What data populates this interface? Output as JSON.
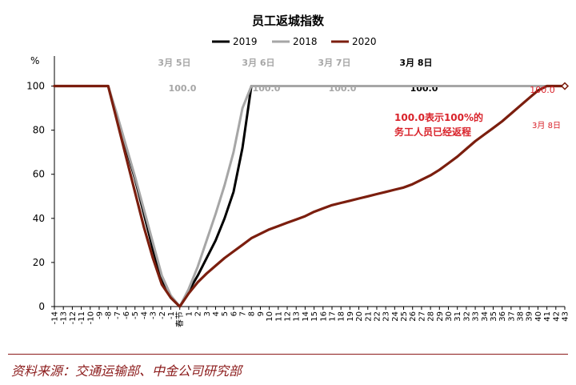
{
  "chart_data": {
    "type": "line",
    "title": "员工返城指数",
    "y_unit": "%",
    "ylim": [
      0,
      110
    ],
    "yticks": [
      0,
      20,
      40,
      60,
      80,
      100
    ],
    "x_labels": [
      "-14",
      "-13",
      "-12",
      "-11",
      "-10",
      "-9",
      "-8",
      "-7",
      "-6",
      "-5",
      "-4",
      "-3",
      "-2",
      "-1",
      "春节",
      "1",
      "2",
      "3",
      "4",
      "5",
      "6",
      "7",
      "8",
      "9",
      "10",
      "11",
      "12",
      "13",
      "14",
      "15",
      "16",
      "17",
      "18",
      "19",
      "20",
      "21",
      "22",
      "23",
      "24",
      "25",
      "26",
      "27",
      "28",
      "29",
      "30",
      "31",
      "32",
      "33",
      "34",
      "35",
      "36",
      "37",
      "38",
      "39",
      "40",
      "41",
      "42",
      "43"
    ],
    "x": [
      -14,
      -13,
      -12,
      -11,
      -10,
      -9,
      -8,
      -7,
      -6,
      -5,
      -4,
      -3,
      -2,
      -1,
      0,
      1,
      2,
      3,
      4,
      5,
      6,
      7,
      8,
      9,
      10,
      11,
      12,
      13,
      14,
      15,
      16,
      17,
      18,
      19,
      20,
      21,
      22,
      23,
      24,
      25,
      26,
      27,
      28,
      29,
      30,
      31,
      32,
      33,
      34,
      35,
      36,
      37,
      38,
      39,
      40,
      41,
      42,
      43
    ],
    "legend_position": "top",
    "series": [
      {
        "name": "2019",
        "color": "#000000",
        "values": [
          100,
          100,
          100,
          100,
          100,
          100,
          100,
          86,
          72,
          58,
          42,
          26,
          12,
          4,
          0,
          7,
          14,
          22,
          30,
          40,
          52,
          72,
          100,
          100,
          100,
          100,
          100,
          100,
          100,
          100,
          100,
          100,
          100,
          100,
          100,
          100,
          100,
          100,
          100,
          100,
          100,
          100,
          100,
          100,
          100,
          100,
          100,
          100,
          100,
          100,
          100,
          100,
          100,
          100,
          100,
          100,
          100,
          100
        ]
      },
      {
        "name": "2018",
        "color": "#a6a6a6",
        "values": [
          100,
          100,
          100,
          100,
          100,
          100,
          100,
          87,
          73,
          59,
          44,
          29,
          14,
          5,
          0,
          8,
          18,
          30,
          42,
          55,
          70,
          90,
          100,
          100,
          100,
          100,
          100,
          100,
          100,
          100,
          100,
          100,
          100,
          100,
          100,
          100,
          100,
          100,
          100,
          100,
          100,
          100,
          100,
          100,
          100,
          100,
          100,
          100,
          100,
          100,
          100,
          100,
          100,
          100,
          100,
          100,
          100,
          100
        ]
      },
      {
        "name": "2020",
        "color": "#7b1e0e",
        "values": [
          100,
          100,
          100,
          100,
          100,
          100,
          100,
          84,
          68,
          52,
          36,
          22,
          10,
          4,
          0,
          6,
          11,
          15,
          18.5,
          22,
          25,
          28,
          31,
          33,
          35,
          36.5,
          38,
          39.5,
          41,
          43,
          44.5,
          46,
          47,
          48,
          49,
          50,
          51,
          52,
          53,
          54,
          55.5,
          57.5,
          59.5,
          62,
          65,
          68,
          71.5,
          75,
          78,
          81,
          84,
          87.5,
          91,
          94.5,
          98,
          100,
          100,
          100
        ]
      }
    ],
    "top_labels": [
      {
        "date": "3月 5日",
        "value": "100.0",
        "color": "#a6a6a6"
      },
      {
        "date": "3月 6日",
        "value": "100.0",
        "color": "#a6a6a6"
      },
      {
        "date": "3月 7日",
        "value": "100.0",
        "color": "#a6a6a6"
      },
      {
        "date": "3月 8日",
        "value": "100.0",
        "color": "#000000"
      }
    ],
    "annotation_lines": [
      "100.0表示100%的",
      "务工人员已经返程"
    ],
    "endpoint_value": "100.0",
    "endpoint_date": "3月 8日",
    "accent_red": "#d9222a"
  },
  "source": "资料来源：交通运输部、中金公司研究部"
}
